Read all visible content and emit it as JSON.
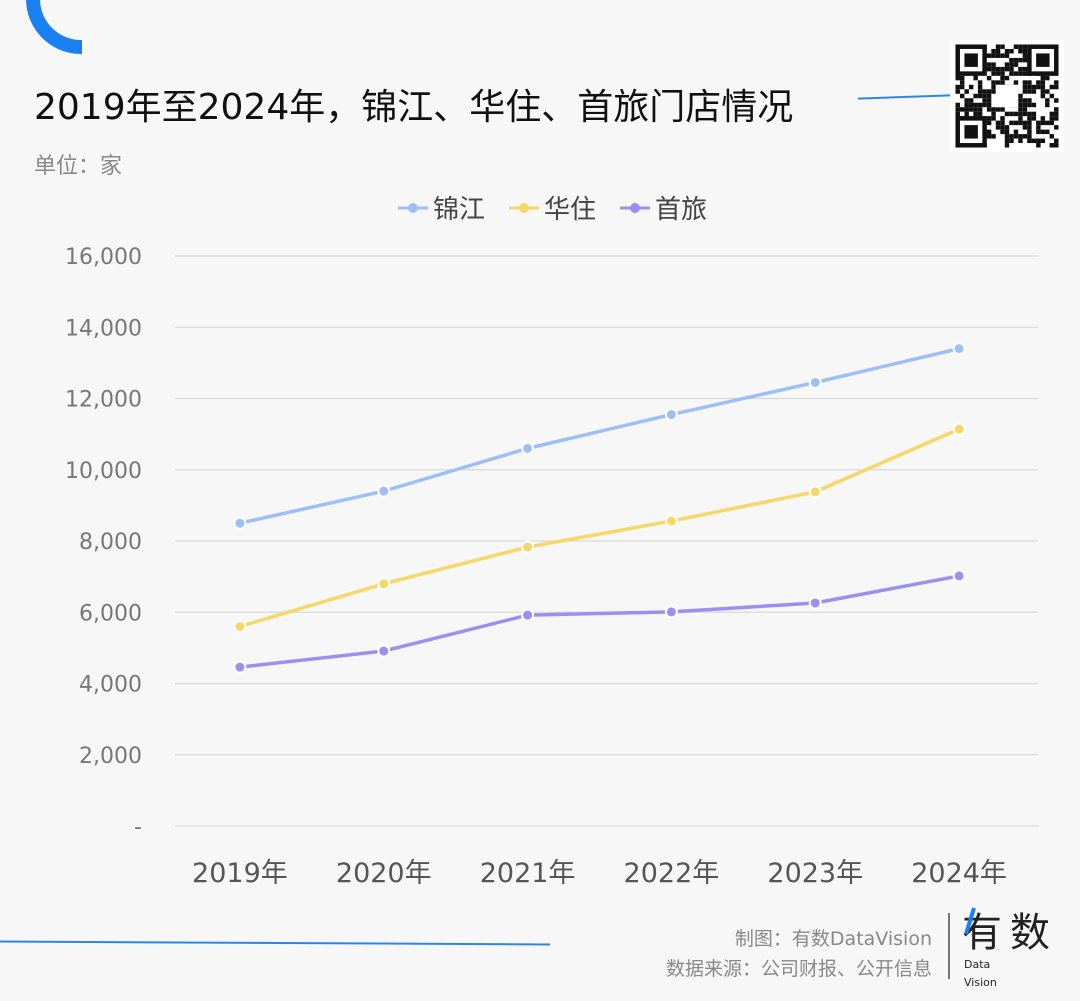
{
  "header": {
    "title": "2019年至2024年，锦江、华住、首旅门店情况",
    "unit": "单位：家"
  },
  "footer": {
    "credit": "制图：有数DataVision",
    "source": "数据来源：公司财报、公开信息",
    "logo_text": "有数 Data Vision"
  },
  "chart_data": {
    "type": "line",
    "title": "2019年至2024年，锦江、华住、首旅门店情况",
    "xlabel": "",
    "ylabel": "单位：家",
    "categories": [
      "2019年",
      "2020年",
      "2021年",
      "2022年",
      "2023年",
      "2024年"
    ],
    "ylim": [
      0,
      16000
    ],
    "yticks": [
      "-",
      "2,000",
      "4,000",
      "6,000",
      "8,000",
      "10,000",
      "12,000",
      "14,000",
      "16,000"
    ],
    "ytick_values": [
      0,
      2000,
      4000,
      6000,
      8000,
      10000,
      12000,
      14000,
      16000
    ],
    "grid": true,
    "legend": "top-center",
    "series": [
      {
        "name": "锦江",
        "color": "#9dbff7",
        "values": [
          8500,
          9400,
          10600,
          11550,
          12450,
          13400
        ]
      },
      {
        "name": "华住",
        "color": "#f6d768",
        "values": [
          5600,
          6800,
          7830,
          8560,
          9380,
          11140
        ]
      },
      {
        "name": "首旅",
        "color": "#9c8ff0",
        "values": [
          4460,
          4910,
          5920,
          6010,
          6260,
          7020
        ]
      }
    ]
  }
}
